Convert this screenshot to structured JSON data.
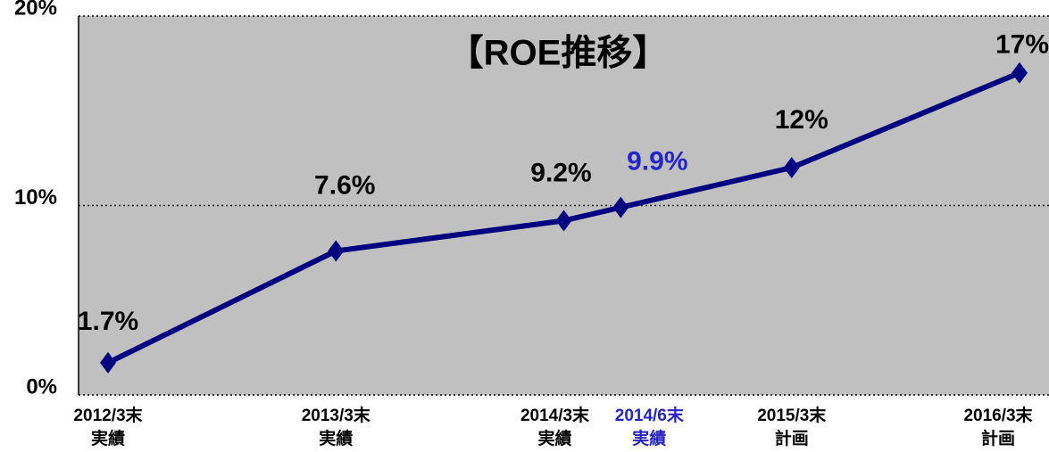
{
  "chart_data": {
    "type": "line",
    "title": "【ROE推移】",
    "categories": [
      [
        "2012/3末",
        "実績"
      ],
      [
        "2013/3末",
        "実績"
      ],
      [
        "2014/3末",
        "実績"
      ],
      [
        "2014/6末",
        "実績"
      ],
      [
        "2015/3末",
        "計画"
      ],
      [
        "2016/3末",
        "計画"
      ]
    ],
    "series": [
      {
        "name": "ROE",
        "color": "#000080",
        "values": [
          1.7,
          7.6,
          9.2,
          9.9,
          12,
          17
        ],
        "value_labels": [
          "1.7%",
          "7.6%",
          "9.2%",
          "9.9%",
          "12%",
          "17%"
        ]
      }
    ],
    "label_colors": [
      "#000000",
      "#000000",
      "#000000",
      "#2424c8",
      "#000000",
      "#000000"
    ],
    "ylim": [
      0,
      20
    ],
    "yticks": [
      {
        "value": 0,
        "label": "0%"
      },
      {
        "value": 10,
        "label": "10%"
      },
      {
        "value": 20,
        "label": "20%"
      }
    ],
    "grid": true,
    "plot_background": "#c0c0c0"
  }
}
